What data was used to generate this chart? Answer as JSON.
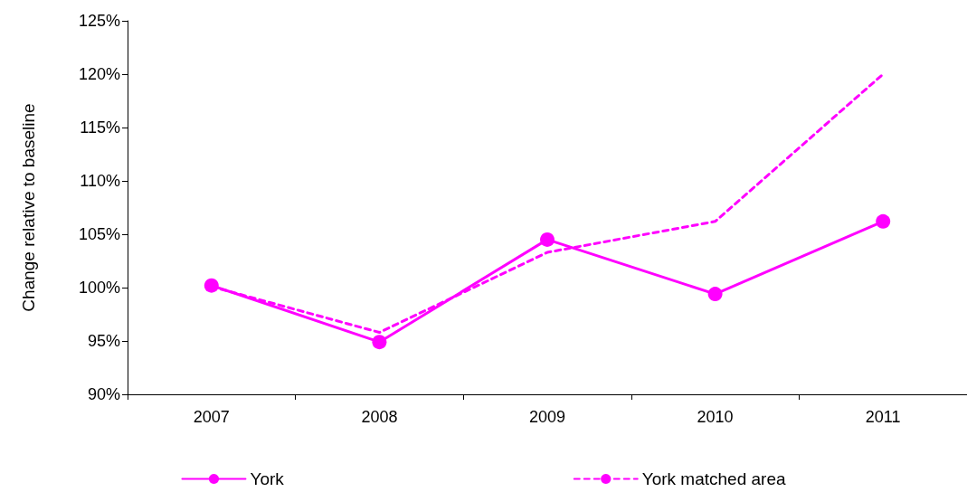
{
  "chart_data": {
    "type": "line",
    "ylabel": "Change relative to baseline",
    "categories": [
      "2007",
      "2008",
      "2009",
      "2010",
      "2011"
    ],
    "series": [
      {
        "name": "York",
        "color": "#ff00ff",
        "values": [
          100.2,
          94.9,
          104.5,
          99.4,
          106.2
        ],
        "marker": "circle",
        "line_style": "solid"
      },
      {
        "name": "York matched area",
        "color": "#ff00ff",
        "values": [
          100.1,
          95.8,
          103.3,
          106.2,
          120.0
        ],
        "marker": "none",
        "line_style": "dashed"
      }
    ],
    "ylim": [
      90,
      125
    ],
    "yticks": [
      {
        "value": 90,
        "label": "90%"
      },
      {
        "value": 95,
        "label": "95%"
      },
      {
        "value": 100,
        "label": "100%"
      },
      {
        "value": 105,
        "label": "105%"
      },
      {
        "value": 110,
        "label": "110%"
      },
      {
        "value": 115,
        "label": "115%"
      },
      {
        "value": 120,
        "label": "120%"
      },
      {
        "value": 125,
        "label": "125%"
      }
    ],
    "grid": false,
    "legend": "bottom"
  }
}
